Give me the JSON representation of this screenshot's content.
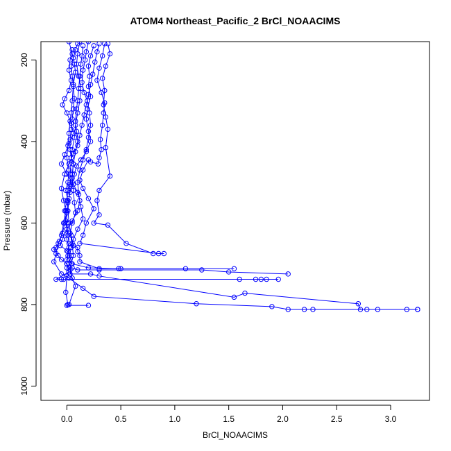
{
  "chart_data": {
    "type": "scatter",
    "title": "ATOM4 Northeast_Pacific_2 BrCl_NOAACIMS",
    "xlabel": "BrCl_NOAACIMS",
    "ylabel": "Pressure (mbar)",
    "xlim": [
      -0.24,
      3.36
    ],
    "ylim": [
      1035,
      155
    ],
    "y_reversed": true,
    "x_ticks": [
      0.0,
      0.5,
      1.0,
      1.5,
      2.0,
      2.5,
      3.0
    ],
    "x_tick_labels": [
      "0.0",
      "0.5",
      "1.0",
      "1.5",
      "2.0",
      "2.5",
      "3.0"
    ],
    "y_ticks": [
      200,
      400,
      600,
      800,
      1000
    ],
    "y_tick_labels": [
      "200",
      "400",
      "600",
      "800",
      "1000"
    ],
    "marker": "open-circle",
    "color": "#0000ff",
    "grid": false,
    "series": [
      {
        "points": [
          [
            0.02,
            155
          ],
          [
            0.05,
            185
          ],
          [
            0.07,
            210
          ],
          [
            0.08,
            230
          ],
          [
            0.06,
            260
          ],
          [
            0.05,
            300
          ],
          [
            0.04,
            330
          ],
          [
            0.03,
            350
          ],
          [
            0.02,
            380
          ],
          [
            0.01,
            410
          ],
          [
            0.0,
            440
          ],
          [
            0.02,
            470
          ],
          [
            0.01,
            500
          ],
          [
            -0.01,
            520
          ],
          [
            0.01,
            545
          ],
          [
            0.0,
            570
          ],
          [
            0.0,
            600
          ],
          [
            0.01,
            630
          ],
          [
            0.02,
            650
          ],
          [
            0.01,
            670
          ],
          [
            0.0,
            690
          ],
          [
            0.0,
            710
          ],
          [
            0.0,
            730
          ],
          [
            -0.01,
            770
          ],
          [
            0.01,
            800
          ]
        ]
      },
      {
        "points": [
          [
            0.12,
            155
          ],
          [
            0.1,
            185
          ],
          [
            0.09,
            210
          ],
          [
            0.11,
            240
          ],
          [
            0.13,
            270
          ],
          [
            0.12,
            300
          ],
          [
            0.1,
            330
          ],
          [
            0.08,
            360
          ],
          [
            0.07,
            390
          ],
          [
            0.05,
            420
          ],
          [
            0.04,
            450
          ],
          [
            0.03,
            480
          ],
          [
            0.03,
            510
          ],
          [
            0.02,
            540
          ],
          [
            0.01,
            570
          ],
          [
            0.02,
            600
          ],
          [
            0.04,
            630
          ],
          [
            0.06,
            655
          ],
          [
            0.1,
            660
          ],
          [
            0.1,
            670
          ],
          [
            0.12,
            680
          ],
          [
            0.12,
            695
          ],
          [
            0.3,
            712
          ],
          [
            0.5,
            712
          ]
        ]
      },
      {
        "points": [
          [
            0.2,
            155
          ],
          [
            0.18,
            180
          ],
          [
            0.17,
            200
          ],
          [
            0.15,
            225
          ],
          [
            0.14,
            255
          ],
          [
            0.16,
            280
          ],
          [
            0.19,
            300
          ],
          [
            0.21,
            330
          ],
          [
            0.22,
            360
          ],
          [
            0.2,
            390
          ],
          [
            0.18,
            420
          ],
          [
            0.15,
            445
          ],
          [
            0.12,
            470
          ],
          [
            0.1,
            500
          ],
          [
            0.11,
            530
          ],
          [
            0.13,
            560
          ],
          [
            0.15,
            590
          ],
          [
            0.1,
            615
          ],
          [
            0.06,
            640
          ],
          [
            0.04,
            660
          ],
          [
            0.02,
            690
          ],
          [
            0.05,
            700
          ],
          [
            0.2,
            710
          ],
          [
            0.48,
            712
          ],
          [
            1.1,
            712
          ],
          [
            1.55,
            712
          ]
        ]
      },
      {
        "points": [
          [
            0.35,
            160
          ],
          [
            0.33,
            190
          ],
          [
            0.3,
            220
          ],
          [
            0.28,
            250
          ],
          [
            0.32,
            280
          ],
          [
            0.35,
            305
          ],
          [
            0.34,
            330
          ],
          [
            0.33,
            360
          ],
          [
            0.31,
            395
          ],
          [
            0.32,
            420
          ],
          [
            0.3,
            440
          ],
          [
            0.29,
            455
          ],
          [
            0.22,
            450
          ],
          [
            0.2,
            445
          ],
          [
            0.15,
            470
          ],
          [
            0.12,
            495
          ],
          [
            0.15,
            515
          ],
          [
            0.2,
            540
          ],
          [
            0.25,
            565
          ],
          [
            0.18,
            600
          ],
          [
            0.15,
            630
          ],
          [
            0.12,
            650
          ],
          [
            0.85,
            675
          ],
          [
            0.9,
            675
          ]
        ]
      },
      {
        "points": [
          [
            0.38,
            160
          ],
          [
            0.4,
            185
          ],
          [
            0.36,
            215
          ],
          [
            0.33,
            245
          ],
          [
            0.35,
            275
          ],
          [
            0.34,
            310
          ],
          [
            0.36,
            340
          ],
          [
            0.38,
            370
          ],
          [
            0.36,
            415
          ],
          [
            0.4,
            485
          ],
          [
            0.3,
            520
          ],
          [
            0.28,
            545
          ],
          [
            0.3,
            580
          ],
          [
            0.25,
            600
          ],
          [
            0.38,
            605
          ],
          [
            0.55,
            650
          ],
          [
            0.8,
            675
          ]
        ]
      },
      {
        "points": [
          [
            0.1,
            160
          ],
          [
            0.08,
            175
          ],
          [
            0.06,
            195
          ],
          [
            0.04,
            215
          ],
          [
            0.05,
            240
          ],
          [
            0.06,
            265
          ],
          [
            0.07,
            295
          ],
          [
            0.06,
            320
          ],
          [
            0.05,
            345
          ],
          [
            0.04,
            370
          ],
          [
            0.03,
            395
          ],
          [
            0.03,
            420
          ],
          [
            0.04,
            440
          ],
          [
            0.06,
            455
          ],
          [
            0.05,
            480
          ],
          [
            0.03,
            505
          ],
          [
            0.01,
            520
          ],
          [
            0.0,
            545
          ],
          [
            -0.02,
            570
          ],
          [
            -0.01,
            595
          ],
          [
            0.0,
            615
          ],
          [
            0.0,
            640
          ],
          [
            0.02,
            660
          ],
          [
            0.01,
            680
          ],
          [
            0.0,
            700
          ],
          [
            0.02,
            720
          ],
          [
            -0.1,
            738
          ],
          [
            -0.05,
            738
          ],
          [
            -0.03,
            738
          ],
          [
            1.6,
            738
          ],
          [
            1.75,
            738
          ],
          [
            1.8,
            738
          ],
          [
            1.85,
            738
          ],
          [
            1.96,
            738
          ]
        ]
      },
      {
        "points": [
          [
            0.15,
            165
          ],
          [
            0.14,
            190
          ],
          [
            0.13,
            210
          ],
          [
            0.12,
            240
          ],
          [
            0.11,
            270
          ],
          [
            0.1,
            300
          ],
          [
            0.09,
            320
          ],
          [
            0.08,
            350
          ],
          [
            0.09,
            375
          ],
          [
            0.1,
            400
          ],
          [
            0.08,
            425
          ],
          [
            0.06,
            455
          ],
          [
            0.05,
            490
          ],
          [
            0.06,
            520
          ],
          [
            0.07,
            550
          ],
          [
            0.08,
            575
          ],
          [
            0.05,
            600
          ],
          [
            0.03,
            625
          ],
          [
            0.05,
            650
          ],
          [
            0.06,
            680
          ],
          [
            0.04,
            700
          ],
          [
            0.03,
            725
          ],
          [
            0.22,
            725
          ],
          [
            0.3,
            730
          ],
          [
            1.55,
            782
          ],
          [
            1.65,
            772
          ],
          [
            2.7,
            798
          ],
          [
            2.72,
            812
          ],
          [
            2.78,
            812
          ],
          [
            2.88,
            812
          ],
          [
            3.15,
            812
          ],
          [
            3.25,
            812
          ]
        ]
      },
      {
        "points": [
          [
            0.25,
            165
          ],
          [
            0.22,
            190
          ],
          [
            0.2,
            215
          ],
          [
            0.21,
            240
          ],
          [
            0.2,
            265
          ],
          [
            0.22,
            290
          ],
          [
            0.19,
            320
          ],
          [
            0.18,
            345
          ],
          [
            0.2,
            375
          ],
          [
            0.22,
            400
          ],
          [
            0.18,
            425
          ],
          [
            0.13,
            445
          ],
          [
            0.09,
            460
          ],
          [
            0.07,
            480
          ],
          [
            0.05,
            500
          ],
          [
            0.03,
            525
          ],
          [
            0.01,
            550
          ],
          [
            0.0,
            575
          ],
          [
            -0.02,
            600
          ],
          [
            -0.04,
            625
          ],
          [
            -0.07,
            645
          ],
          [
            -0.1,
            660
          ],
          [
            -0.12,
            665
          ],
          [
            -0.08,
            680
          ],
          [
            -0.05,
            690
          ],
          [
            0.0,
            700
          ],
          [
            0.03,
            715
          ],
          [
            0.05,
            735
          ],
          [
            0.08,
            755
          ],
          [
            0.02,
            800
          ],
          [
            0.0,
            802
          ],
          [
            0.2,
            802
          ]
        ]
      },
      {
        "points": [
          [
            0.3,
            160
          ],
          [
            0.28,
            180
          ],
          [
            0.26,
            205
          ],
          [
            0.24,
            235
          ],
          [
            0.22,
            260
          ],
          [
            0.2,
            285
          ],
          [
            0.18,
            310
          ],
          [
            0.16,
            335
          ],
          [
            0.14,
            360
          ],
          [
            0.12,
            385
          ],
          [
            0.1,
            410
          ],
          [
            0.06,
            430
          ],
          [
            0.02,
            455
          ],
          [
            -0.02,
            480
          ],
          [
            -0.05,
            515
          ],
          [
            -0.03,
            545
          ],
          [
            -0.01,
            570
          ],
          [
            -0.03,
            600
          ],
          [
            -0.05,
            630
          ],
          [
            -0.08,
            650
          ],
          [
            -0.1,
            675
          ],
          [
            -0.12,
            695
          ],
          [
            -0.05,
            725
          ],
          [
            0.02,
            735
          ],
          [
            0.15,
            760
          ],
          [
            0.25,
            780
          ],
          [
            1.2,
            798
          ],
          [
            1.9,
            805
          ],
          [
            2.05,
            812
          ],
          [
            2.2,
            812
          ],
          [
            2.28,
            812
          ],
          [
            3.25,
            812
          ]
        ]
      },
      {
        "points": [
          [
            0.05,
            175
          ],
          [
            0.03,
            200
          ],
          [
            0.02,
            225
          ],
          [
            0.04,
            250
          ],
          [
            0.02,
            275
          ],
          [
            -0.02,
            295
          ],
          [
            -0.04,
            310
          ],
          [
            0.0,
            330
          ],
          [
            0.04,
            355
          ],
          [
            0.06,
            380
          ],
          [
            0.02,
            405
          ],
          [
            -0.02,
            432
          ],
          [
            -0.05,
            455
          ],
          [
            0.0,
            480
          ],
          [
            0.06,
            505
          ],
          [
            0.1,
            525
          ],
          [
            0.12,
            545
          ],
          [
            0.1,
            570
          ],
          [
            0.05,
            595
          ],
          [
            0.0,
            615
          ],
          [
            -0.04,
            640
          ],
          [
            -0.06,
            655
          ],
          [
            0.0,
            668
          ],
          [
            0.04,
            680
          ],
          [
            0.02,
            700
          ],
          [
            0.05,
            710
          ],
          [
            0.1,
            715
          ],
          [
            0.3,
            715
          ],
          [
            1.25,
            715
          ],
          [
            1.5,
            720
          ],
          [
            2.05,
            725
          ]
        ]
      }
    ]
  }
}
